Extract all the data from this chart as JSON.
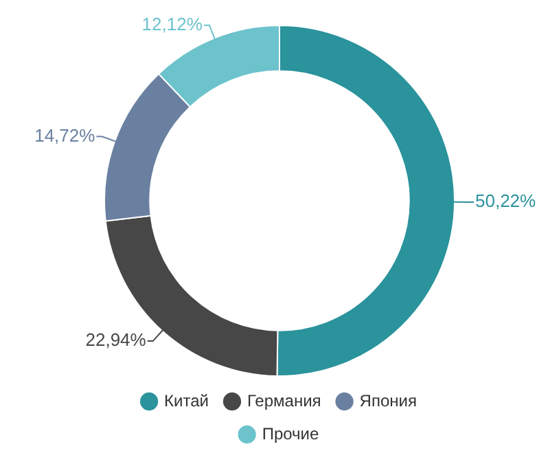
{
  "chart_data": {
    "type": "donut",
    "categories": [
      "Китай",
      "Германия",
      "Япония",
      "Прочие"
    ],
    "values": [
      50.22,
      22.94,
      14.72,
      12.12
    ],
    "colors": [
      "#2a939c",
      "#474747",
      "#6a80a0",
      "#6cc3cc"
    ],
    "value_labels": [
      "50,22%",
      "22,94%",
      "14,72%",
      "12,12%"
    ],
    "legend": "bottom"
  }
}
